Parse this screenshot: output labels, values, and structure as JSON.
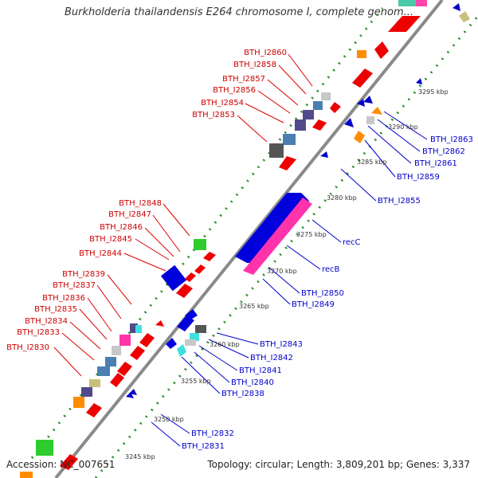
{
  "title": "Burkholderia thailandensis E264 chromosome I, complete genom...",
  "accession": "Accession: NC_007651",
  "topology": "Topology: circular; Length: 3,809,201 bp; Genes: 3,337",
  "colors": {
    "backbone": "#8a8a8a",
    "ruler_dots": "#2e8b2e",
    "forward_label": "#cc0000",
    "reverse_label": "#0000cc"
  },
  "kbp_ticks": [
    "3245 kbp",
    "3250 kbp",
    "3255 kbp",
    "3260 kbp",
    "3265 kbp",
    "3270 kbp",
    "3275 kbp",
    "3280 kbp",
    "3285 kbp",
    "3290 kbp",
    "3295 kbp"
  ],
  "forward_labels": [
    "BTH_I2860",
    "BTH_I2858",
    "BTH_I2857",
    "BTH_I2856",
    "BTH_I2854",
    "BTH_I2853",
    "BTH_I2848",
    "BTH_I2847",
    "BTH_I2846",
    "BTH_I2845",
    "BTH_I2844",
    "BTH_I2839",
    "BTH_I2837",
    "BTH_I2836",
    "BTH_I2835",
    "BTH_I2834",
    "BTH_I2833",
    "BTH_I2830"
  ],
  "reverse_labels": [
    "BTH_I2863",
    "BTH_I2862",
    "BTH_I2861",
    "BTH_I2859",
    "BTH_I2855",
    "recC",
    "recB",
    "BTH_I2850",
    "BTH_I2849",
    "BTH_I2843",
    "BTH_I2842",
    "BTH_I2841",
    "BTH_I2840",
    "BTH_I2838",
    "BTH_I2832",
    "BTH_I2831"
  ]
}
